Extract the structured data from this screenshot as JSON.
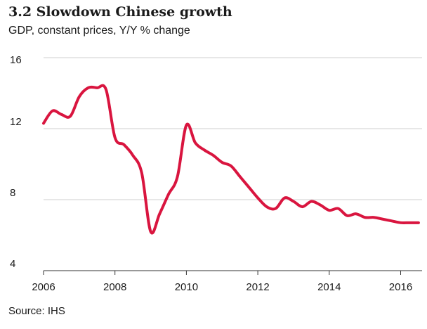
{
  "title": "3.2 Slowdown Chinese growth",
  "subtitle": "GDP, constant prices, Y/Y % change",
  "source": "Source: IHS",
  "colors": {
    "line": "#d9153f",
    "grid": "#cfcfcf",
    "axis": "#333333",
    "text": "#1a1a1a"
  },
  "chart_data": {
    "type": "line",
    "title": "3.2 Slowdown Chinese growth",
    "subtitle": "GDP, constant prices, Y/Y % change",
    "xlabel": "",
    "ylabel": "",
    "xlim": [
      2006,
      2016.6
    ],
    "ylim": [
      4,
      16
    ],
    "xticks": [
      2006,
      2008,
      2010,
      2012,
      2014,
      2016
    ],
    "yticks": [
      4,
      8,
      12,
      16
    ],
    "grid": true,
    "legend": "none",
    "series": [
      {
        "values": [
          [
            2006.0,
            12.3
          ],
          [
            2006.25,
            13.0
          ],
          [
            2006.5,
            12.8
          ],
          [
            2006.75,
            12.7
          ],
          [
            2007.0,
            13.8
          ],
          [
            2007.25,
            14.3
          ],
          [
            2007.5,
            14.3
          ],
          [
            2007.75,
            14.2
          ],
          [
            2008.0,
            11.5
          ],
          [
            2008.25,
            11.1
          ],
          [
            2008.5,
            10.5
          ],
          [
            2008.75,
            9.5
          ],
          [
            2009.0,
            6.2
          ],
          [
            2009.25,
            7.2
          ],
          [
            2009.5,
            8.3
          ],
          [
            2009.75,
            9.3
          ],
          [
            2010.0,
            12.2
          ],
          [
            2010.25,
            11.2
          ],
          [
            2010.5,
            10.8
          ],
          [
            2010.75,
            10.5
          ],
          [
            2011.0,
            10.1
          ],
          [
            2011.25,
            9.9
          ],
          [
            2011.5,
            9.3
          ],
          [
            2011.75,
            8.7
          ],
          [
            2012.0,
            8.1
          ],
          [
            2012.25,
            7.6
          ],
          [
            2012.5,
            7.5
          ],
          [
            2012.75,
            8.1
          ],
          [
            2013.0,
            7.9
          ],
          [
            2013.25,
            7.6
          ],
          [
            2013.5,
            7.9
          ],
          [
            2013.75,
            7.7
          ],
          [
            2014.0,
            7.4
          ],
          [
            2014.25,
            7.5
          ],
          [
            2014.5,
            7.1
          ],
          [
            2014.75,
            7.2
          ],
          [
            2015.0,
            7.0
          ],
          [
            2015.25,
            7.0
          ],
          [
            2015.5,
            6.9
          ],
          [
            2015.75,
            6.8
          ],
          [
            2016.0,
            6.7
          ],
          [
            2016.25,
            6.7
          ],
          [
            2016.5,
            6.7
          ]
        ]
      }
    ]
  }
}
